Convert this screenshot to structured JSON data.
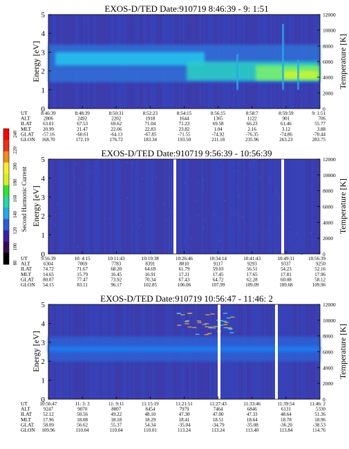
{
  "colorbar": {
    "label": "Second Harmonic Current",
    "ticks": [
      "240",
      "220",
      "200",
      "180",
      "160",
      "140",
      "120",
      "100",
      "80"
    ],
    "colors": [
      "#000000",
      "#3b0a52",
      "#3a1fa5",
      "#2a5bd8",
      "#25a9e6",
      "#23d7a8",
      "#2ee62e",
      "#d7f21a",
      "#f7f12a",
      "#f28a1c",
      "#e8331a",
      "#ff0000"
    ]
  },
  "labels": {
    "ylabel": "Energy [eV]",
    "ylabel_right": "Temperature [K]",
    "row_names": [
      "UT",
      "ALT",
      "ILAT",
      "MLT",
      "GLAT",
      "GLON"
    ]
  },
  "chart_data": [
    {
      "type": "heatmap",
      "title": "EXOS-D/TED   Date:910719  8:46:39 - 9: 1:51",
      "ylabel": "Energy [eV]",
      "ylabel_right": "Temperature [K]",
      "ylim": [
        0,
        5
      ],
      "y_ticks": [
        "0",
        "1",
        "2",
        "3",
        "4",
        "5"
      ],
      "y2lim": [
        0,
        12000
      ],
      "y2_ticks": [
        "0",
        "2000",
        "4000",
        "6000",
        "8000",
        "10000",
        "12000"
      ],
      "columns": [
        {
          "UT": "8:46:39",
          "ALT": "2806",
          "ILAT": "63.01",
          "MLT": "20.99",
          "GLAT": "-57.16",
          "GLON": "168.70"
        },
        {
          "UT": "8:48:39",
          "ALT": "2492",
          "ILAT": "67.53",
          "MLT": "21.47",
          "GLAT": "-60.61",
          "GLON": "172.19"
        },
        {
          "UT": "8:50:31",
          "ALT": "2202",
          "ILAT": "69.62",
          "MLT": "22.06",
          "GLAT": "-64.13",
          "GLON": "176.72"
        },
        {
          "UT": "8:52:23",
          "ALT": "1918",
          "ILAT": "71.04",
          "MLT": "22.83",
          "GLAT": "-67.85",
          "GLON": "183.34"
        },
        {
          "UT": "8:54:15",
          "ALT": "1644",
          "ILAT": "71.23",
          "MLT": "23.82",
          "GLAT": "-71.55",
          "GLON": "193.50"
        },
        {
          "UT": "8:56:15",
          "ALT": "1365",
          "ILAT": "69.58",
          "MLT": "1.04",
          "GLAT": "-74.92",
          "GLON": "211.18"
        },
        {
          "UT": "8:58:7",
          "ALT": "1122",
          "ILAT": "66.23",
          "MLT": "2.16",
          "GLAT": "-76.35",
          "GLON": "235.96"
        },
        {
          "UT": "8:59:59",
          "ALT": "901",
          "ILAT": "61.46",
          "MLT": "3.12",
          "GLAT": "-74.86",
          "GLON": "263.23"
        },
        {
          "UT": "9: 1:51",
          "ALT": "706",
          "ILAT": "55.77",
          "MLT": "3.88",
          "GLAT": "-70.44",
          "GLON": "283.75"
        }
      ]
    },
    {
      "type": "heatmap",
      "title": "EXOS-D/TED   Date:910719  9:56:39 - 10:56:39",
      "ylabel": "Energy [eV]",
      "ylabel_right": "Temperature [K]",
      "ylim": [
        0,
        5
      ],
      "y_ticks": [
        "0",
        "1",
        "2",
        "3",
        "4",
        "5"
      ],
      "y2lim": [
        0,
        12000
      ],
      "y2_ticks": [
        "0",
        "2000",
        "4000",
        "6000",
        "8000",
        "10000",
        "12000"
      ],
      "columns": [
        {
          "UT": "9:56:39",
          "ALT": "6304",
          "ILAT": "74.72",
          "MLT": "14.65",
          "GLAT": "80.07",
          "GLON": "54.15"
        },
        {
          "UT": "10: 4:15",
          "ALT": "7069",
          "ILAT": "71.67",
          "MLT": "15.79",
          "GLAT": "77.47",
          "GLON": "83.11"
        },
        {
          "UT": "10:11:43",
          "ALT": "7783",
          "ILAT": "68.20",
          "MLT": "16.45",
          "GLAT": "73.92",
          "GLON": "96.17"
        },
        {
          "UT": "10:19:38",
          "ALT": "8391",
          "ILAT": "64.69",
          "MLT": "16.91",
          "GLAT": "70.34",
          "GLON": "102.85"
        },
        {
          "UT": "10:26:46",
          "ALT": "8810",
          "ILAT": "61.79",
          "MLT": "17.21",
          "GLAT": "67.43",
          "GLON": "106.06"
        },
        {
          "UT": "10:34:14",
          "ALT": "9117",
          "ILAT": "59.03",
          "MLT": "17.45",
          "GLAT": "64.72",
          "GLON": "107.99"
        },
        {
          "UT": "10:41:43",
          "ALT": "9293",
          "ILAT": "56.51",
          "MLT": "17.65",
          "GLAT": "62.28",
          "GLON": "109.09"
        },
        {
          "UT": "10:49:11",
          "ALT": "9337",
          "ILAT": "54.23",
          "MLT": "17.81",
          "GLAT": "60.08",
          "GLON": "109.68"
        },
        {
          "UT": "10:56:39",
          "ALT": "9250",
          "ILAT": "52.16",
          "MLT": "17.96",
          "GLAT": "58.12",
          "GLON": "109.96"
        }
      ]
    },
    {
      "type": "heatmap",
      "title": "EXOS-D/TED   Date:910719  10:56:47 - 11:46: 2",
      "ylabel": "Energy [eV]",
      "ylabel_right": "Temperature [K]",
      "ylim": [
        0,
        5
      ],
      "y_ticks": [
        "0",
        "1",
        "2",
        "3",
        "4",
        "5"
      ],
      "y2lim": [
        0,
        12000
      ],
      "y2_ticks": [
        "0",
        "2000",
        "4000",
        "6000",
        "8000",
        "10000",
        "12000"
      ],
      "columns": [
        {
          "UT": "10:56:47",
          "ALT": "9247",
          "ILAT": "52.12",
          "MLT": "17.96",
          "GLAT": "58.09",
          "GLON": "109.96"
        },
        {
          "UT": "11: 3: 3",
          "ALT": "9070",
          "ILAT": "50.56",
          "MLT": "18.08",
          "GLAT": "56.62",
          "GLON": "110.04"
        },
        {
          "UT": "11: 9:11",
          "ALT": "8807",
          "ILAT": "49.22",
          "MLT": "18.18",
          "GLAT": "55.37",
          "GLON": "110.04"
        },
        {
          "UT": "11:15:19",
          "ALT": "8454",
          "ILAT": "48.10",
          "MLT": "18.29",
          "GLAT": "54.34",
          "GLON": "110.01"
        },
        {
          "UT": "11:21:51",
          "ALT": "7979",
          "ILAT": "47.30",
          "MLT": "18.41",
          "GLAT": "-35.04",
          "GLON": "113.24"
        },
        {
          "UT": "11:27:43",
          "ALT": "7464",
          "ILAT": "47.00",
          "MLT": "18.51",
          "GLAT": "-34.79",
          "GLON": "113.24"
        },
        {
          "UT": "11:33:46",
          "ALT": "6846",
          "ILAT": "47.33",
          "MLT": "18.64",
          "GLAT": "-35.08",
          "GLON": "113.40"
        },
        {
          "UT": "11:39:54",
          "ALT": "6131",
          "ILAT": "48.64",
          "MLT": "18.78",
          "GLAT": "-36.20",
          "GLON": "113.84"
        },
        {
          "UT": "11:46: 2",
          "ALT": "5330",
          "ILAT": "51.36",
          "MLT": "18.96",
          "GLAT": "-38.53",
          "GLON": "114.76"
        }
      ]
    }
  ]
}
